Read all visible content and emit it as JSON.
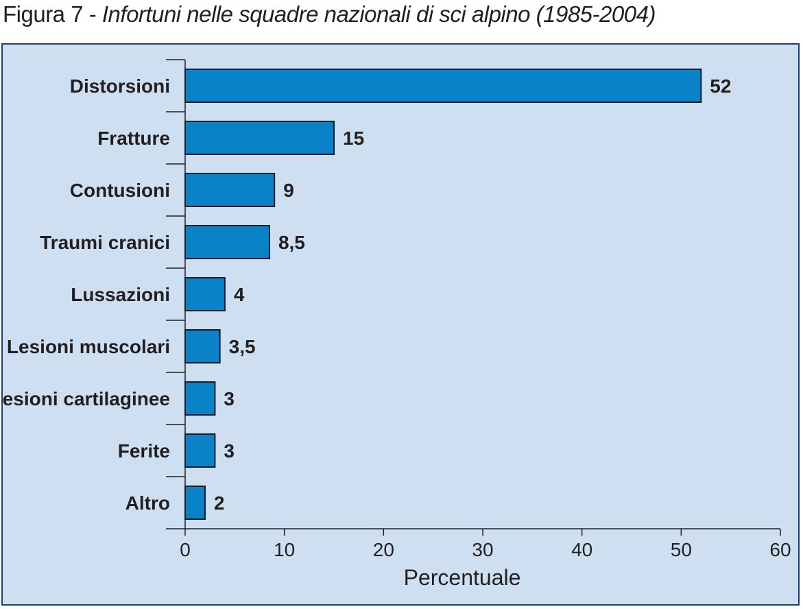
{
  "figure": {
    "label": "Figura 7",
    "separator": " - ",
    "subtitle": "Infortuni nelle squadre nazionali di sci alpino (1985-2004)"
  },
  "colors": {
    "bar": "#0a82c8",
    "bar_stroke": "#0d1b2e",
    "panel_background": "#cddff0",
    "panel_border": "#1e3f73",
    "axis": "#231f20"
  },
  "chart_data": {
    "type": "bar",
    "orientation": "horizontal",
    "categories": [
      "Distorsioni",
      "Fratture",
      "Contusioni",
      "Traumi cranici",
      "Lussazioni",
      "Lesioni muscolari",
      "Lesioni cartilaginee",
      "Ferite",
      "Altro"
    ],
    "values": [
      52,
      15,
      9,
      8.5,
      4,
      3.5,
      3,
      3,
      2
    ],
    "value_labels": [
      "52",
      "15",
      "9",
      "8,5",
      "4",
      "3,5",
      "3",
      "3",
      "2"
    ],
    "xlabel": "Percentuale",
    "ylabel": "",
    "xlim": [
      0,
      60
    ],
    "xticks": [
      0,
      10,
      20,
      30,
      40,
      50,
      60
    ],
    "grid": false,
    "legend": "none"
  }
}
